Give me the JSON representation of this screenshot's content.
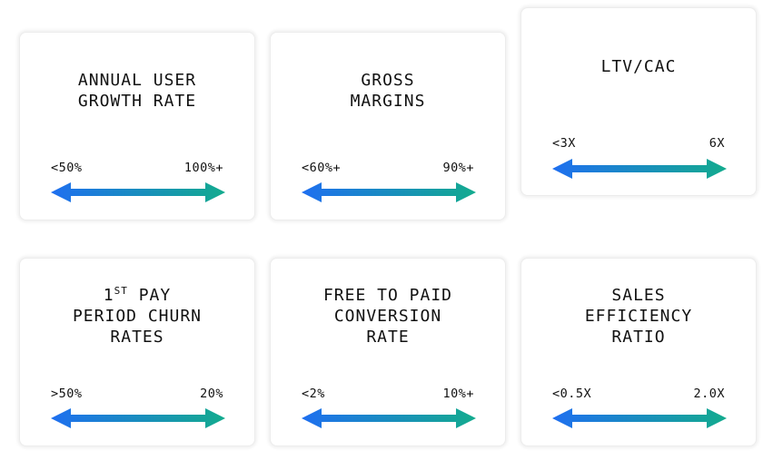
{
  "cards": [
    {
      "title": "ANNUAL USER\nGROWTH RATE",
      "low": "<50%",
      "high": "100%+"
    },
    {
      "title": "GROSS\nMARGINS",
      "low": "<60%+",
      "high": "90%+"
    },
    {
      "title": "LTV/CAC",
      "low": "<3X",
      "high": "6X"
    },
    {
      "title_prefix": "1",
      "title_sup": "ST",
      "title_rest": " PAY\nPERIOD CHURN\nRATES",
      "low": ">50%",
      "high": "20%"
    },
    {
      "title": "FREE TO PAID\nCONVERSION\nRATE",
      "low": "<2%",
      "high": "10%+"
    },
    {
      "title": "SALES\nEFFICIENCY\nRATIO",
      "low": "<0.5X",
      "high": "2.0X"
    }
  ],
  "colors": {
    "arrow_start": "#1f6ff0",
    "arrow_end": "#13ab8e"
  }
}
